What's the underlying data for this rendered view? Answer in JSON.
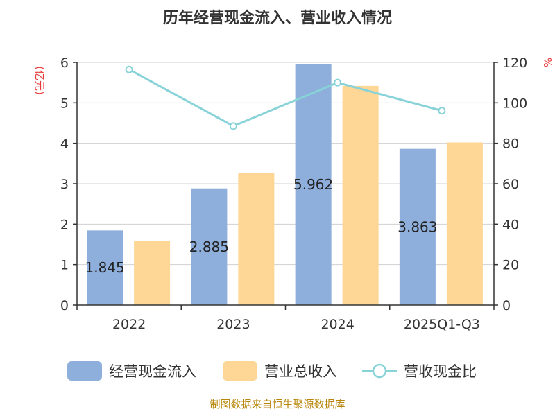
{
  "chart_data": {
    "type": "bar",
    "title": "历年经营现金流入、营业收入情况",
    "categories": [
      "2022",
      "2023",
      "2024",
      "2025Q1-Q3"
    ],
    "y_left": {
      "unit": "(亿元)",
      "range": [
        0,
        6
      ],
      "ticks": [
        "0",
        "1",
        "2",
        "3",
        "4",
        "5",
        "6"
      ]
    },
    "y_right": {
      "unit": "%",
      "range": [
        0,
        120
      ],
      "ticks": [
        "0",
        "20",
        "40",
        "60",
        "80",
        "100",
        "120"
      ]
    },
    "series": [
      {
        "name": "经营现金流入",
        "kind": "bar",
        "axis": "left",
        "color": "#8eaedb",
        "values": [
          1.845,
          2.885,
          5.962,
          3.863
        ],
        "data_labels": [
          "1.845",
          "2.885",
          "5.962",
          "3.863"
        ]
      },
      {
        "name": "营业总收入",
        "kind": "bar",
        "axis": "left",
        "color": "#fed695",
        "values": [
          1.59,
          3.26,
          5.42,
          4.02
        ]
      },
      {
        "name": "营收现金比",
        "kind": "line",
        "axis": "right",
        "color": "#88d3d8",
        "values": [
          116.5,
          88.5,
          110.0,
          96.1
        ]
      }
    ],
    "grid": true,
    "legend_position": "bottom"
  },
  "colors": {
    "unit_red": "#e83a3a",
    "source_gold": "#b8860b",
    "axis": "#333333",
    "grid": "#d0d0d0"
  },
  "source_text": "制图数据来自恒生聚源数据库"
}
